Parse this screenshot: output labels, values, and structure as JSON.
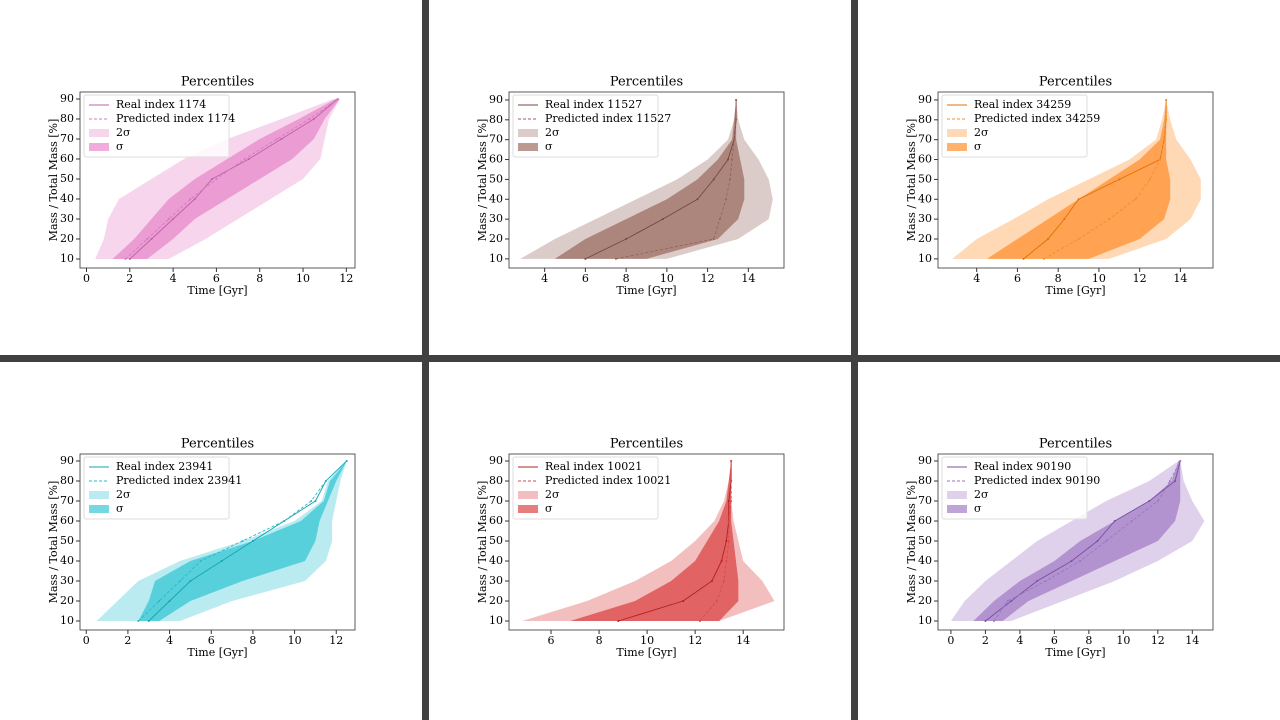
{
  "chart_data": [
    {
      "type": "line",
      "title": "Percentiles",
      "xlabel": "Time [Gyr]",
      "ylabel": "Mass / Total Mass [%]",
      "legend": "upper left",
      "y": [
        10,
        20,
        30,
        40,
        50,
        60,
        70,
        80,
        90
      ],
      "xlim": [
        -0.3,
        12.4
      ],
      "xticks": [
        0,
        2,
        4,
        6,
        8,
        10,
        12
      ],
      "ylim": [
        5.5,
        93.5
      ],
      "yticks": [
        10,
        20,
        30,
        40,
        50,
        60,
        70,
        80,
        90
      ],
      "series": [
        {
          "name": "Real index 1174",
          "color": "#c25fa8",
          "values": [
            2.0,
            3.0,
            4.0,
            5.0,
            5.8,
            7.5,
            9.0,
            10.5,
            11.6
          ]
        },
        {
          "name": "Predicted index 1174",
          "color": "#d07cc0",
          "values": [
            1.8,
            2.8,
            3.8,
            4.8,
            6.0,
            7.3,
            8.8,
            10.3,
            11.6
          ]
        }
      ],
      "bands": [
        {
          "name": "2σ",
          "color": "#e377c2",
          "alpha": 0.3,
          "lower": [
            0.4,
            0.8,
            1.0,
            1.5,
            3.0,
            4.5,
            6.5,
            9.0,
            11.4
          ],
          "upper": [
            3.8,
            5.5,
            7.0,
            8.5,
            10.0,
            10.8,
            11.0,
            11.2,
            11.7
          ]
        },
        {
          "name": "σ",
          "color": "#e377c2",
          "alpha": 0.6,
          "lower": [
            1.2,
            2.2,
            3.0,
            3.8,
            5.0,
            6.5,
            8.0,
            9.8,
            11.5
          ],
          "upper": [
            2.8,
            4.0,
            5.0,
            6.5,
            8.0,
            9.5,
            10.5,
            11.0,
            11.7
          ]
        }
      ]
    },
    {
      "type": "line",
      "title": "Percentiles",
      "xlabel": "Time [Gyr]",
      "ylabel": "Mass / Total Mass [%]",
      "legend": "upper left",
      "y": [
        10,
        20,
        30,
        40,
        50,
        60,
        70,
        80,
        90
      ],
      "xlim": [
        2.25,
        15.75
      ],
      "xticks": [
        4,
        6,
        8,
        10,
        12,
        14
      ],
      "ylim": [
        5.4,
        94
      ],
      "yticks": [
        10,
        20,
        30,
        40,
        50,
        60,
        70,
        80,
        90
      ],
      "series": [
        {
          "name": "Real index 11527",
          "color": "#7a463d",
          "values": [
            6.0,
            8.0,
            9.8,
            11.5,
            12.3,
            13.0,
            13.3,
            13.4,
            13.4
          ]
        },
        {
          "name": "Predicted index 11527",
          "color": "#9a6258",
          "values": [
            7.5,
            12.3,
            12.6,
            12.9,
            13.1,
            13.2,
            13.3,
            13.4,
            13.4
          ]
        }
      ],
      "bands": [
        {
          "name": "2σ",
          "color": "#8c564b",
          "alpha": 0.3,
          "lower": [
            2.8,
            4.5,
            6.5,
            8.5,
            10.5,
            12.0,
            13.0,
            13.3,
            13.4
          ],
          "upper": [
            10.0,
            13.5,
            15.0,
            15.2,
            15.0,
            14.5,
            13.8,
            13.5,
            13.4
          ]
        },
        {
          "name": "σ",
          "color": "#8c564b",
          "alpha": 0.6,
          "lower": [
            4.5,
            6.0,
            8.0,
            10.0,
            11.5,
            12.5,
            13.2,
            13.3,
            13.4
          ],
          "upper": [
            9.0,
            12.5,
            13.5,
            13.8,
            13.8,
            13.6,
            13.4,
            13.4,
            13.4
          ]
        }
      ]
    },
    {
      "type": "line",
      "title": "Percentiles",
      "xlabel": "Time [Gyr]",
      "ylabel": "Mass / Total Mass [%]",
      "legend": "upper left",
      "y": [
        10,
        20,
        30,
        40,
        50,
        60,
        70,
        80,
        90
      ],
      "xlim": [
        2.1,
        15.6
      ],
      "xticks": [
        4,
        6,
        8,
        10,
        12,
        14
      ],
      "ylim": [
        5.4,
        94
      ],
      "yticks": [
        10,
        20,
        30,
        40,
        50,
        60,
        70,
        80,
        90
      ],
      "series": [
        {
          "name": "Real index 34259",
          "color": "#e0700a",
          "values": [
            6.3,
            7.5,
            8.3,
            9.0,
            11.0,
            13.0,
            13.2,
            13.3,
            13.3
          ]
        },
        {
          "name": "Predicted index 34259",
          "color": "#f09030",
          "values": [
            7.3,
            9.0,
            10.5,
            11.8,
            12.5,
            13.0,
            13.2,
            13.3,
            13.3
          ]
        }
      ],
      "bands": [
        {
          "name": "2σ",
          "color": "#ff7f0e",
          "alpha": 0.3,
          "lower": [
            2.8,
            4.0,
            5.8,
            7.5,
            9.5,
            11.5,
            12.8,
            13.1,
            13.3
          ],
          "upper": [
            10.5,
            13.3,
            14.5,
            15.0,
            15.0,
            14.5,
            13.8,
            13.5,
            13.3
          ]
        },
        {
          "name": "σ",
          "color": "#ff7f0e",
          "alpha": 0.6,
          "lower": [
            4.5,
            6.0,
            7.5,
            9.0,
            10.5,
            12.0,
            13.0,
            13.2,
            13.3
          ],
          "upper": [
            9.5,
            12.0,
            13.2,
            13.5,
            13.5,
            13.3,
            13.3,
            13.3,
            13.3
          ]
        }
      ]
    },
    {
      "type": "line",
      "title": "Percentiles",
      "xlabel": "Time [Gyr]",
      "ylabel": "Mass / Total Mass [%]",
      "legend": "upper left",
      "y": [
        10,
        20,
        30,
        40,
        50,
        60,
        70,
        80,
        90
      ],
      "xlim": [
        -0.3,
        12.9
      ],
      "xticks": [
        0,
        2,
        4,
        6,
        8,
        10,
        12
      ],
      "ylim": [
        5.5,
        93.5
      ],
      "yticks": [
        10,
        20,
        30,
        40,
        50,
        60,
        70,
        80,
        90
      ],
      "series": [
        {
          "name": "Real index 23941",
          "color": "#12a5b4",
          "values": [
            3.0,
            4.0,
            5.0,
            6.5,
            8.0,
            9.5,
            11.0,
            11.5,
            12.5
          ]
        },
        {
          "name": "Predicted index 23941",
          "color": "#2bb8c8",
          "values": [
            2.5,
            3.5,
            4.5,
            5.5,
            7.5,
            9.5,
            10.8,
            11.5,
            12.5
          ]
        }
      ],
      "bands": [
        {
          "name": "2σ",
          "color": "#17becf",
          "alpha": 0.3,
          "lower": [
            0.5,
            1.5,
            2.5,
            4.5,
            7.5,
            10.0,
            11.3,
            11.6,
            12.5
          ],
          "upper": [
            4.5,
            7.0,
            10.5,
            11.5,
            11.8,
            11.8,
            12.0,
            12.2,
            12.5
          ]
        },
        {
          "name": "σ",
          "color": "#17becf",
          "alpha": 0.6,
          "lower": [
            2.5,
            3.0,
            3.3,
            5.0,
            8.0,
            10.3,
            11.4,
            11.7,
            12.5
          ],
          "upper": [
            3.5,
            5.0,
            7.5,
            10.5,
            11.0,
            11.2,
            11.6,
            12.0,
            12.5
          ]
        }
      ]
    },
    {
      "type": "line",
      "title": "Percentiles",
      "xlabel": "Time [Gyr]",
      "ylabel": "Mass / Total Mass [%]",
      "legend": "upper left",
      "y": [
        10,
        20,
        30,
        40,
        50,
        60,
        70,
        80,
        90
      ],
      "xlim": [
        4.25,
        15.7
      ],
      "xticks": [
        6,
        8,
        10,
        12,
        14
      ],
      "ylim": [
        5.5,
        93.5
      ],
      "yticks": [
        10,
        20,
        30,
        40,
        50,
        60,
        70,
        80,
        90
      ],
      "series": [
        {
          "name": "Real index 10021",
          "color": "#b51f20",
          "values": [
            8.8,
            11.5,
            12.7,
            13.1,
            13.3,
            13.4,
            13.4,
            13.5,
            13.5
          ]
        },
        {
          "name": "Predicted index 10021",
          "color": "#d84a4a",
          "values": [
            12.2,
            12.9,
            13.2,
            13.3,
            13.4,
            13.4,
            13.5,
            13.5,
            13.5
          ]
        }
      ],
      "bands": [
        {
          "name": "2σ",
          "color": "#d62728",
          "alpha": 0.3,
          "lower": [
            4.8,
            7.5,
            9.5,
            11.0,
            12.0,
            12.8,
            13.2,
            13.4,
            13.5
          ],
          "upper": [
            13.0,
            15.3,
            14.8,
            14.0,
            13.8,
            13.6,
            13.5,
            13.5,
            13.5
          ]
        },
        {
          "name": "σ",
          "color": "#d62728",
          "alpha": 0.6,
          "lower": [
            6.8,
            9.5,
            11.0,
            12.0,
            12.5,
            13.0,
            13.3,
            13.4,
            13.5
          ],
          "upper": [
            13.0,
            13.8,
            13.8,
            13.7,
            13.6,
            13.5,
            13.5,
            13.5,
            13.5
          ]
        }
      ]
    },
    {
      "type": "line",
      "title": "Percentiles",
      "xlabel": "Time [Gyr]",
      "ylabel": "Mass / Total Mass [%]",
      "legend": "upper left",
      "y": [
        10,
        20,
        30,
        40,
        50,
        60,
        70,
        80,
        90
      ],
      "xlim": [
        -0.75,
        15.2
      ],
      "xticks": [
        0,
        2,
        4,
        6,
        8,
        10,
        12,
        14
      ],
      "ylim": [
        5.5,
        93.5
      ],
      "yticks": [
        10,
        20,
        30,
        40,
        50,
        60,
        70,
        80,
        90
      ],
      "series": [
        {
          "name": "Real index 90190",
          "color": "#7a4fa3",
          "values": [
            2.0,
            3.5,
            5.0,
            7.0,
            8.5,
            9.5,
            11.5,
            13.0,
            13.3
          ]
        },
        {
          "name": "Predicted index 90190",
          "color": "#9c76c2",
          "values": [
            2.5,
            3.3,
            5.5,
            7.5,
            9.0,
            10.5,
            12.0,
            12.7,
            13.3
          ]
        }
      ],
      "bands": [
        {
          "name": "2σ",
          "color": "#9467bd",
          "alpha": 0.3,
          "lower": [
            0.0,
            0.8,
            2.0,
            3.5,
            5.0,
            7.0,
            9.0,
            11.5,
            13.2
          ],
          "upper": [
            3.5,
            6.5,
            9.5,
            12.0,
            14.0,
            14.7,
            14.0,
            13.5,
            13.3
          ]
        },
        {
          "name": "σ",
          "color": "#9467bd",
          "alpha": 0.6,
          "lower": [
            1.3,
            2.5,
            4.0,
            6.0,
            7.5,
            9.5,
            11.5,
            12.8,
            13.2
          ],
          "upper": [
            3.0,
            4.5,
            7.0,
            9.5,
            12.0,
            13.0,
            13.3,
            13.3,
            13.3
          ]
        }
      ]
    }
  ]
}
